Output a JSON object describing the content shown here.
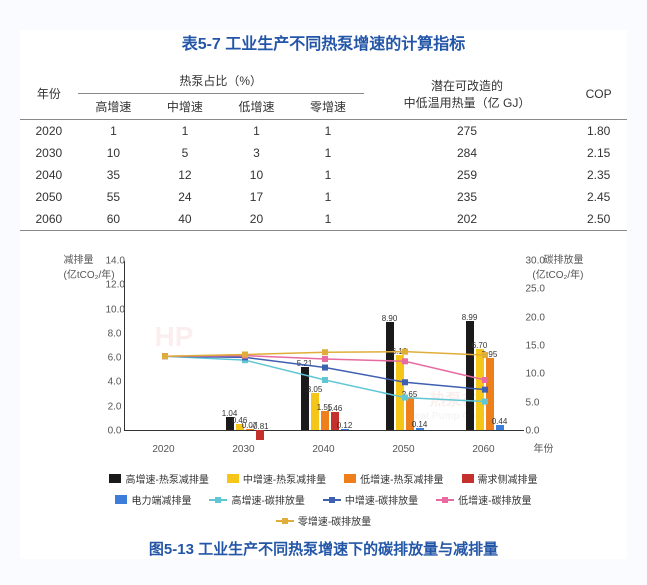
{
  "table": {
    "title": "表5-7 工业生产不同热泵增速的计算指标",
    "headers": {
      "year": "年份",
      "share_group": "热泵占比（%）",
      "heat": "潜在可改造的\n中低温用热量（亿 GJ）",
      "cop": "COP",
      "sub": [
        "高增速",
        "中增速",
        "低增速",
        "零增速"
      ]
    },
    "rows": [
      {
        "year": "2020",
        "hi": "1",
        "mid": "1",
        "low": "1",
        "zero": "1",
        "heat": "275",
        "cop": "1.80"
      },
      {
        "year": "2030",
        "hi": "10",
        "mid": "5",
        "low": "3",
        "zero": "1",
        "heat": "284",
        "cop": "2.15"
      },
      {
        "year": "2040",
        "hi": "35",
        "mid": "12",
        "low": "10",
        "zero": "1",
        "heat": "259",
        "cop": "2.35"
      },
      {
        "year": "2050",
        "hi": "55",
        "mid": "24",
        "low": "17",
        "zero": "1",
        "heat": "235",
        "cop": "2.45"
      },
      {
        "year": "2060",
        "hi": "60",
        "mid": "40",
        "low": "20",
        "zero": "1",
        "heat": "202",
        "cop": "2.50"
      }
    ]
  },
  "chart": {
    "caption": "图5-13 工业生产不同热泵增速下的碳排放量与减排量",
    "y_left_label": "减排量\n(亿tCO₂/年)",
    "y_right_label": "碳排放量\n(亿tCO₂/年)",
    "x_caption": "年份",
    "x_categories": [
      "2020",
      "2030",
      "2040",
      "2050",
      "2060"
    ],
    "y_left": {
      "min": 0,
      "max": 14,
      "step": 2
    },
    "y_right": {
      "min": 0,
      "max": 30,
      "step": 5
    },
    "colors": {
      "hi_red": "#1a1a1a",
      "mid_red": "#f5c517",
      "low_red": "#ef7f1a",
      "demand_red": "#c4302b",
      "elec_red": "#3b7dd8",
      "hi_emit": "#5fc6d4",
      "mid_emit": "#3f5fb0",
      "low_emit": "#e86aa0",
      "zero_emit": "#dfae3a",
      "grid": "#e4e4e4",
      "axis": "#333333",
      "bg": "#ffffff"
    },
    "bars": {
      "keys": [
        "hi_red",
        "mid_red",
        "low_red",
        "demand_red",
        "elec_red"
      ],
      "width": 8,
      "group_gap": 70,
      "data": {
        "2020": [
          null,
          null,
          null,
          null,
          null
        ],
        "2030": [
          1.04,
          0.46,
          0.07,
          -0.81,
          null
        ],
        "2040": [
          5.21,
          3.05,
          1.55,
          1.46,
          0.12
        ],
        "2050": [
          8.9,
          6.19,
          2.65,
          null,
          0.14
        ],
        "2060": [
          8.99,
          6.7,
          5.95,
          null,
          0.44
        ]
      }
    },
    "lines": {
      "hi_emit": [
        13.2,
        12.5,
        9.0,
        5.9,
        5.2
      ],
      "mid_emit": [
        13.2,
        13.0,
        11.2,
        8.6,
        7.3
      ],
      "low_emit": [
        13.2,
        13.3,
        12.7,
        12.3,
        9.0
      ],
      "zero_emit": [
        13.2,
        13.5,
        13.9,
        14.0,
        13.4
      ]
    },
    "legend": [
      {
        "type": "sq",
        "colorKey": "hi_red",
        "label": "高增速-热泵减排量"
      },
      {
        "type": "sq",
        "colorKey": "mid_red",
        "label": "中增速-热泵减排量"
      },
      {
        "type": "sq",
        "colorKey": "low_red",
        "label": "低增速-热泵减排量"
      },
      {
        "type": "sq",
        "colorKey": "demand_red",
        "label": "需求侧减排量"
      },
      {
        "type": "sq",
        "colorKey": "elec_red",
        "label": "电力端减排量"
      },
      {
        "type": "ln",
        "colorKey": "hi_emit",
        "label": "高增速-碳排放量"
      },
      {
        "type": "ln",
        "colorKey": "mid_emit",
        "label": "中增速-碳排放量"
      },
      {
        "type": "ln",
        "colorKey": "low_emit",
        "label": "低增速-碳排放量"
      },
      {
        "type": "ln",
        "colorKey": "zero_emit",
        "label": "零增速-碳排放量"
      }
    ]
  },
  "watermarks": [
    {
      "text": "热泵在线",
      "sub": "Heat Pump Online"
    }
  ]
}
